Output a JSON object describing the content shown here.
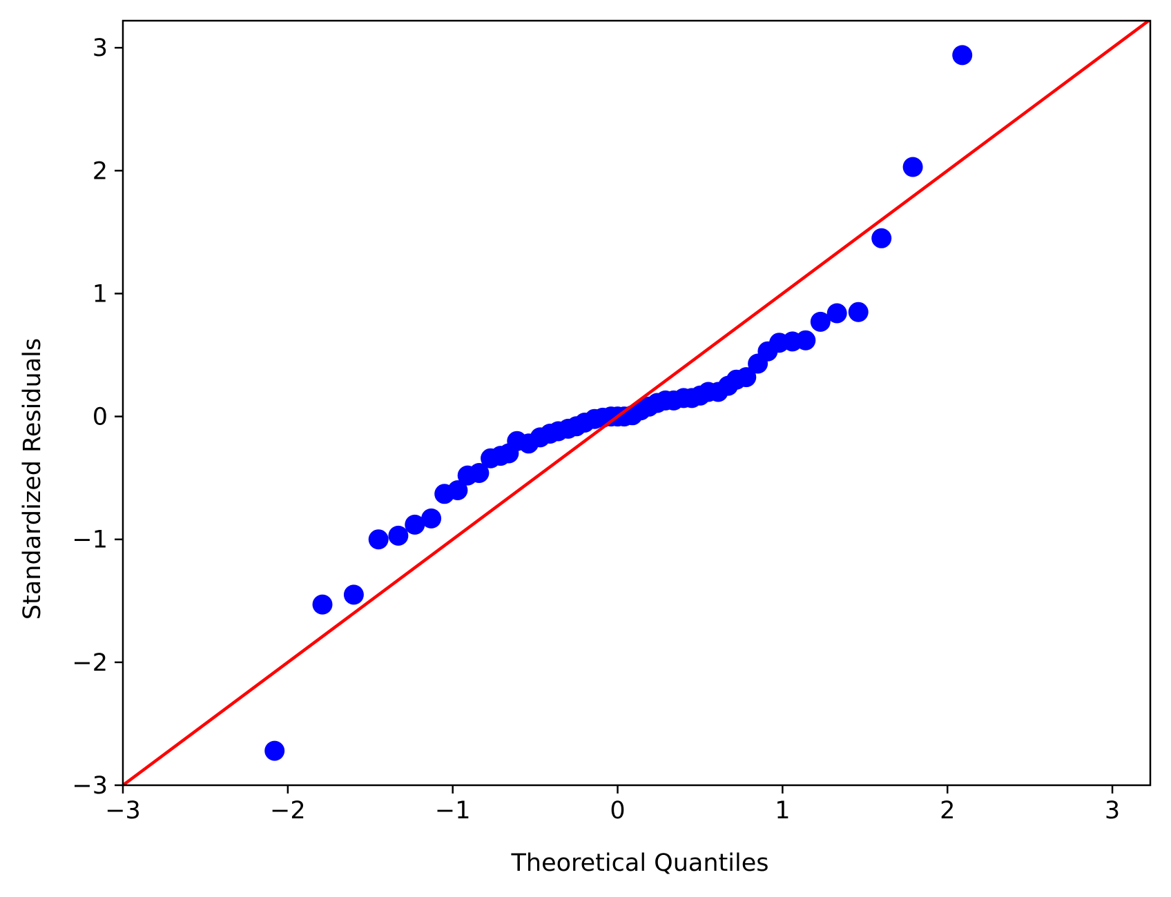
{
  "chart_data": {
    "type": "scatter",
    "title": "",
    "xlabel": "Theoretical Quantiles",
    "ylabel": "Standardized Residuals",
    "xlim": [
      -3,
      3.23
    ],
    "ylim": [
      -3,
      3.22
    ],
    "xticks": [
      -3,
      -2,
      -1,
      0,
      1,
      2,
      3
    ],
    "yticks": [
      -3,
      -2,
      -1,
      0,
      1,
      2,
      3
    ],
    "xtick_labels": [
      "−3",
      "−2",
      "−1",
      "0",
      "1",
      "2",
      "3"
    ],
    "ytick_labels": [
      "−3",
      "−2",
      "−1",
      "0",
      "1",
      "2",
      "3"
    ],
    "grid": false,
    "legend": null,
    "series": [
      {
        "name": "sample quantiles",
        "kind": "scatter",
        "color": "#0000ff",
        "points": [
          [
            -2.08,
            -2.72
          ],
          [
            -1.79,
            -1.53
          ],
          [
            -1.6,
            -1.45
          ],
          [
            -1.45,
            -1.0
          ],
          [
            -1.33,
            -0.97
          ],
          [
            -1.23,
            -0.88
          ],
          [
            -1.13,
            -0.83
          ],
          [
            -1.05,
            -0.63
          ],
          [
            -0.97,
            -0.6
          ],
          [
            -0.91,
            -0.48
          ],
          [
            -0.84,
            -0.46
          ],
          [
            -0.77,
            -0.34
          ],
          [
            -0.71,
            -0.32
          ],
          [
            -0.66,
            -0.3
          ],
          [
            -0.61,
            -0.2
          ],
          [
            -0.54,
            -0.22
          ],
          [
            -0.47,
            -0.17
          ],
          [
            -0.41,
            -0.14
          ],
          [
            -0.36,
            -0.12
          ],
          [
            -0.3,
            -0.1
          ],
          [
            -0.25,
            -0.08
          ],
          [
            -0.2,
            -0.05
          ],
          [
            -0.14,
            -0.02
          ],
          [
            -0.09,
            -0.01
          ],
          [
            -0.04,
            0.0
          ],
          [
            0.0,
            0.0
          ],
          [
            0.04,
            0.0
          ],
          [
            0.09,
            0.01
          ],
          [
            0.14,
            0.05
          ],
          [
            0.19,
            0.08
          ],
          [
            0.24,
            0.11
          ],
          [
            0.29,
            0.13
          ],
          [
            0.34,
            0.13
          ],
          [
            0.4,
            0.15
          ],
          [
            0.45,
            0.15
          ],
          [
            0.5,
            0.17
          ],
          [
            0.55,
            0.2
          ],
          [
            0.61,
            0.2
          ],
          [
            0.67,
            0.25
          ],
          [
            0.72,
            0.3
          ],
          [
            0.78,
            0.32
          ],
          [
            0.85,
            0.43
          ],
          [
            0.91,
            0.53
          ],
          [
            0.98,
            0.6
          ],
          [
            1.06,
            0.61
          ],
          [
            1.14,
            0.62
          ],
          [
            1.23,
            0.77
          ],
          [
            1.33,
            0.84
          ],
          [
            1.46,
            0.85
          ],
          [
            1.6,
            1.45
          ],
          [
            1.79,
            2.03
          ],
          [
            2.09,
            2.94
          ]
        ]
      },
      {
        "name": "45-degree reference line",
        "kind": "line",
        "color": "#ff0000",
        "points": [
          [
            -3,
            -3
          ],
          [
            3.23,
            3.23
          ]
        ]
      }
    ]
  }
}
